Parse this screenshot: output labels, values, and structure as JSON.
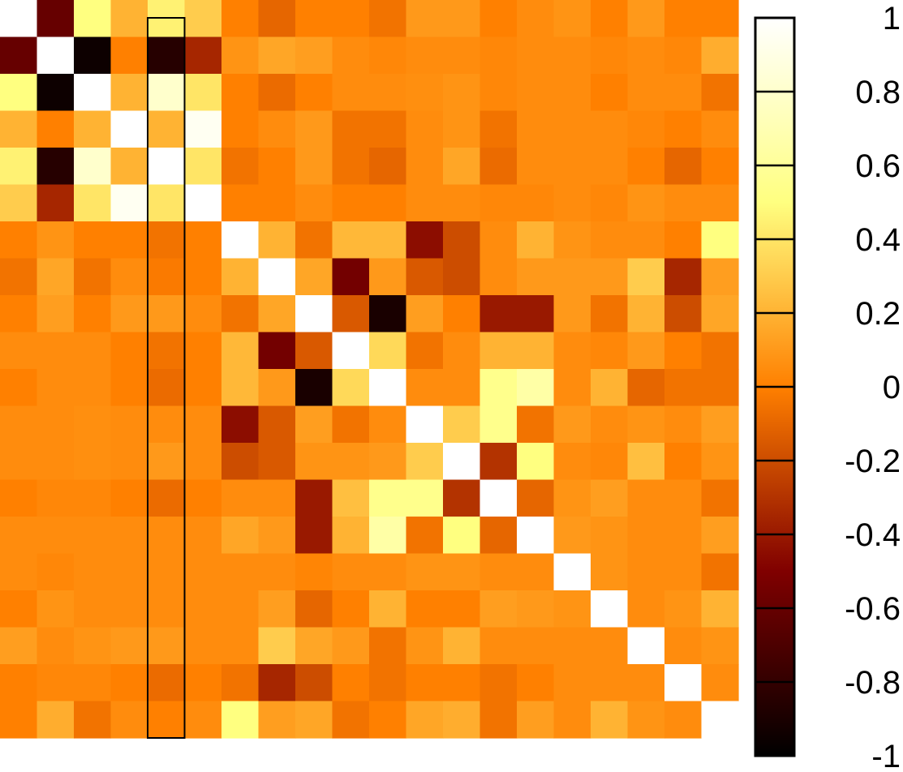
{
  "chart_data": {
    "type": "heatmap",
    "rows": 20,
    "cols": 20,
    "value_range": [
      -1,
      1
    ],
    "colorscale": "afmhot",
    "colorbar": {
      "ticks": [
        1,
        0.8,
        0.6,
        0.4,
        0.2,
        0,
        -0.2,
        -0.4,
        -0.6,
        -0.8,
        -1
      ],
      "tick_labels": [
        "1",
        "0.8",
        "0.6",
        "0.4",
        "0.2",
        "0",
        "-0.2",
        "-0.4",
        "-0.6",
        "-0.8",
        "-1"
      ]
    },
    "highlighted_column": 4,
    "values": [
      [
        1,
        -0.6,
        0.5,
        0.2,
        0.45,
        0.3,
        0,
        -0.1,
        0,
        0,
        -0.05,
        0.1,
        0.1,
        0,
        0.05,
        0.08,
        0,
        0.1,
        0,
        0
      ],
      [
        -0.6,
        1,
        -0.95,
        0,
        -0.85,
        -0.35,
        0.08,
        0.15,
        0.12,
        0.05,
        0.03,
        0.05,
        0.05,
        0.03,
        0.05,
        0.05,
        0.03,
        0.05,
        0.03,
        0.18
      ],
      [
        0.5,
        -0.95,
        1,
        0.2,
        0.8,
        0.4,
        0.0,
        -0.08,
        0.0,
        0.05,
        0.05,
        0.06,
        0.08,
        0.03,
        0.05,
        0.05,
        0,
        0.05,
        0.05,
        -0.05
      ],
      [
        0.2,
        0,
        0.2,
        1,
        0.2,
        0.95,
        0.0,
        0.05,
        0.1,
        -0.05,
        -0.05,
        0.05,
        0.08,
        -0.05,
        0.05,
        0.05,
        0.05,
        0.03,
        0.0,
        0.05
      ],
      [
        0.45,
        -0.85,
        0.8,
        0.2,
        1,
        0.4,
        -0.05,
        0.0,
        0.1,
        -0.05,
        -0.1,
        0.05,
        0.15,
        -0.08,
        0.05,
        0.05,
        0.05,
        0.0,
        -0.1,
        0.0
      ],
      [
        0.3,
        -0.35,
        0.4,
        0.95,
        0.4,
        1,
        0.0,
        0.0,
        0.05,
        0.0,
        0.0,
        0.05,
        0.05,
        0.03,
        0.03,
        0.05,
        0.03,
        0.08,
        0.05,
        0.05
      ],
      [
        0,
        0.08,
        0.0,
        0.0,
        -0.05,
        0.0,
        1,
        0.2,
        -0.05,
        0.22,
        0.22,
        -0.45,
        -0.2,
        0.05,
        0.2,
        0.08,
        0.05,
        0.05,
        0.0,
        0.5
      ],
      [
        -0.05,
        0.15,
        -0.05,
        0.05,
        -0.02,
        0.0,
        0.2,
        1,
        0.15,
        -0.55,
        0.1,
        -0.15,
        -0.2,
        0.05,
        0.1,
        0.1,
        0.1,
        0.3,
        -0.35,
        0.12
      ],
      [
        0,
        0.12,
        0.0,
        0.1,
        0.1,
        0.05,
        -0.05,
        0.15,
        1,
        -0.15,
        -0.9,
        0.12,
        0.0,
        -0.4,
        -0.4,
        0.1,
        -0.05,
        0.2,
        -0.2,
        0.15
      ],
      [
        0.05,
        0.05,
        0.05,
        0.0,
        -0.05,
        0.0,
        0.22,
        -0.55,
        -0.15,
        1,
        0.35,
        -0.05,
        0.05,
        0.2,
        0.2,
        0.05,
        0.03,
        0.1,
        0.0,
        -0.05
      ],
      [
        0.0,
        0.05,
        0.05,
        0.0,
        -0.08,
        0.0,
        0.22,
        0.1,
        -0.9,
        0.35,
        1,
        0.05,
        0.05,
        0.55,
        0.65,
        0.05,
        0.2,
        -0.1,
        -0.05,
        -0.05
      ],
      [
        0.05,
        0.05,
        0.06,
        0.05,
        0.05,
        0.05,
        -0.45,
        -0.15,
        0.12,
        -0.05,
        0.05,
        1,
        0.3,
        0.55,
        -0.05,
        0.1,
        0.05,
        0.08,
        0.05,
        0.12
      ],
      [
        0.05,
        0.05,
        0.06,
        0.05,
        0.1,
        0.05,
        -0.2,
        -0.15,
        0.08,
        0.08,
        0.1,
        0.3,
        1,
        -0.3,
        0.5,
        0.05,
        0.03,
        0.25,
        0.0,
        0.08
      ],
      [
        0.0,
        0.03,
        0.03,
        0.0,
        -0.08,
        0.0,
        0.05,
        0.05,
        -0.4,
        0.25,
        0.55,
        0.55,
        -0.3,
        1,
        -0.1,
        0.08,
        0.12,
        0.05,
        0.05,
        -0.05
      ],
      [
        0.05,
        0.05,
        0.05,
        0.05,
        0.05,
        0.05,
        0.15,
        0.1,
        -0.4,
        0.2,
        0.65,
        -0.05,
        0.5,
        -0.1,
        1,
        0.1,
        0.08,
        0.05,
        0.05,
        0.12
      ],
      [
        0.05,
        0.03,
        0.05,
        0.05,
        0.05,
        0.05,
        0.05,
        0.05,
        0.02,
        0.05,
        0.05,
        0.08,
        0.08,
        0.05,
        0.05,
        1,
        0.08,
        0.05,
        0.05,
        -0.05
      ],
      [
        0.0,
        0.08,
        0.05,
        0.05,
        0.05,
        0.05,
        0.05,
        0.12,
        -0.1,
        0.0,
        0.2,
        0.0,
        0.0,
        0.12,
        0.1,
        0.08,
        1,
        0.05,
        0.08,
        0.2
      ],
      [
        0.12,
        0.05,
        0.08,
        0.1,
        0.1,
        0.05,
        0.05,
        0.3,
        0.15,
        0.1,
        -0.05,
        0.08,
        0.2,
        0.05,
        0.05,
        0.05,
        0.05,
        1,
        0.05,
        0.08
      ],
      [
        0.0,
        0.03,
        0.03,
        0.0,
        -0.08,
        0.0,
        -0.05,
        -0.35,
        -0.2,
        0.0,
        -0.05,
        0.0,
        0.0,
        -0.05,
        0.0,
        0.05,
        0.05,
        0.05,
        1,
        0.05
      ],
      [
        0.0,
        0.18,
        -0.05,
        0.05,
        0.0,
        0.05,
        0.5,
        0.12,
        0.15,
        -0.05,
        0.0,
        0.15,
        0.18,
        -0.05,
        0.12,
        0.05,
        0.2,
        0.08,
        0.05,
        1
      ]
    ]
  }
}
